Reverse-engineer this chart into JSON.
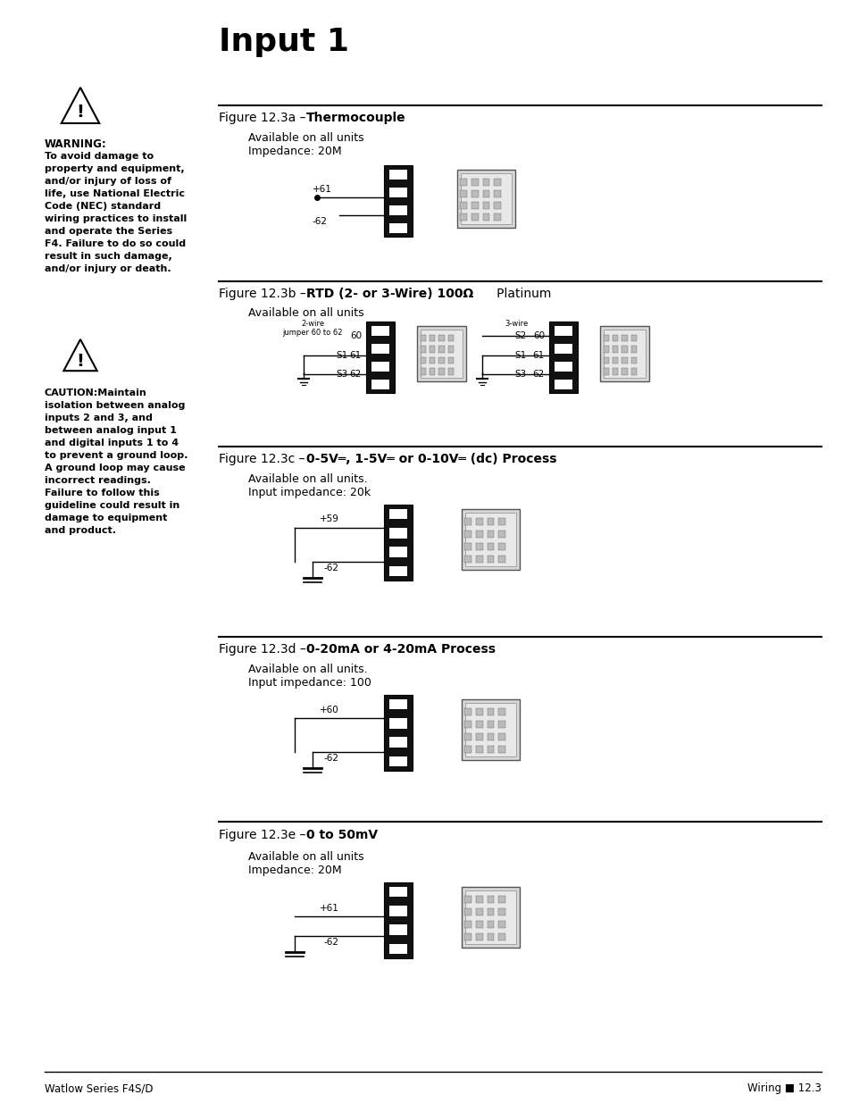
{
  "title": "Input 1",
  "bg_color": "#ffffff",
  "page_header_left": "Watlow Series F4S/D",
  "page_header_right": "Wiring ■ 12.3",
  "warning_title": "WARNING:",
  "warning_text": "To avoid damage to\nproperty and equipment,\nand/or injury of loss of\nlife, use National Electric\nCode (NEC) standard\nwiring practices to install\nand operate the Series\nF4. Failure to do so could\nresult in such damage,\nand/or injury or death.",
  "caution_text": "CAUTION:Maintain\nisolation between analog\ninputs 2 and 3, and\nbetween analog input 1\nand digital inputs 1 to 4\nto prevent a ground loop.\nA ground loop may cause\nincorrect readings.\nFailure to follow this\nguideline could result in\ndamage to equipment\nand product.",
  "fig_a_label": "Figure 12.3a – ",
  "fig_a_bold": "Thermocouple",
  "fig_a_sub1": "Available on all units",
  "fig_a_sub2": "Impedance: 20M",
  "fig_b_label": "Figure 12.3b – ",
  "fig_b_bold": "RTD (2- or 3-Wire) 100Ω",
  "fig_b_plain": "   Platinum",
  "fig_b_sub1": "Available on all units",
  "fig_c_label": "Figure 12.3c – ",
  "fig_c_bold": "0-5V═, 1-5V═ or 0-10V═ (dc) Process",
  "fig_c_sub1": "Available on all units.",
  "fig_c_sub2": "Input impedance: 20k",
  "fig_d_label": "Figure 12.3d – ",
  "fig_d_bold": "0-20mA or 4-20mA Process",
  "fig_d_sub1": "Available on all units.",
  "fig_d_sub2": "Input impedance: 100",
  "fig_e_label": "Figure 12.3e – ",
  "fig_e_bold": "0 to 50mV",
  "fig_e_sub1": "Available on all units",
  "fig_e_sub2": "Impedance: 20M"
}
